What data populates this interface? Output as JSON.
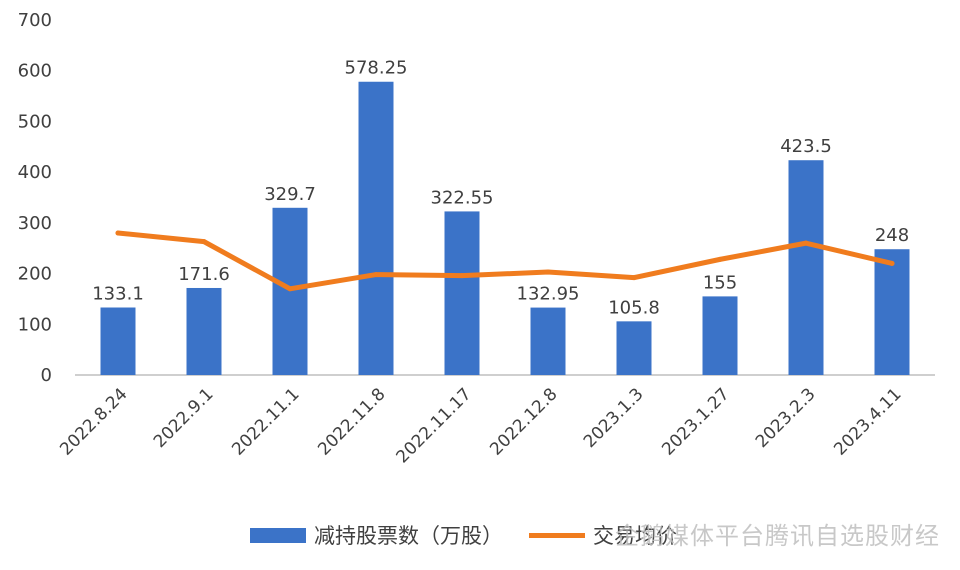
{
  "chart_data": {
    "type": "bar",
    "categories": [
      "2022.8.24",
      "2022.9.1",
      "2022.11.1",
      "2022.11.8",
      "2022.11.17",
      "2022.12.8",
      "2023.1.3",
      "2023.1.27",
      "2023.2.3",
      "2023.4.11"
    ],
    "series": [
      {
        "name": "减持股票数（万股）",
        "type": "bar",
        "color": "#3b73c8",
        "values": [
          133.1,
          171.6,
          329.7,
          578.25,
          322.55,
          132.95,
          105.8,
          155,
          423.5,
          248
        ],
        "labels": [
          "133.1",
          "171.6",
          "329.7",
          "578.25",
          "322.55",
          "132.95",
          "105.8",
          "155",
          "423.5",
          "248"
        ]
      },
      {
        "name": "交易均价",
        "type": "line",
        "color": "#f07c1e",
        "values": [
          280,
          263,
          170,
          198,
          196,
          203,
          192,
          228,
          260,
          220
        ]
      }
    ],
    "yticks": [
      "0",
      "100",
      "200",
      "300",
      "400",
      "500",
      "600",
      "700"
    ],
    "ylim": [
      0,
      700
    ],
    "grid": false,
    "legend_position": "bottom"
  },
  "watermark": "企鹅媒体平台腾讯自选股财经"
}
